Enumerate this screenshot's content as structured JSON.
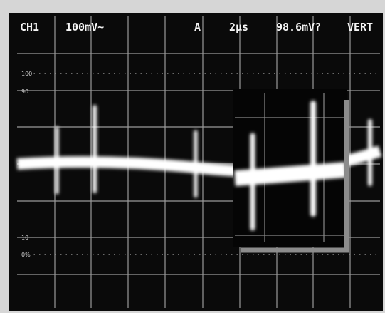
{
  "header": {
    "channel": "CH1",
    "scale": "100mV~",
    "trigger_mode": "A",
    "timebase": "2µs",
    "trigger_level": "98.6mV?",
    "mode": "VERT"
  },
  "graticule_labels": [
    "100",
    "90",
    "10",
    "0%"
  ]
}
